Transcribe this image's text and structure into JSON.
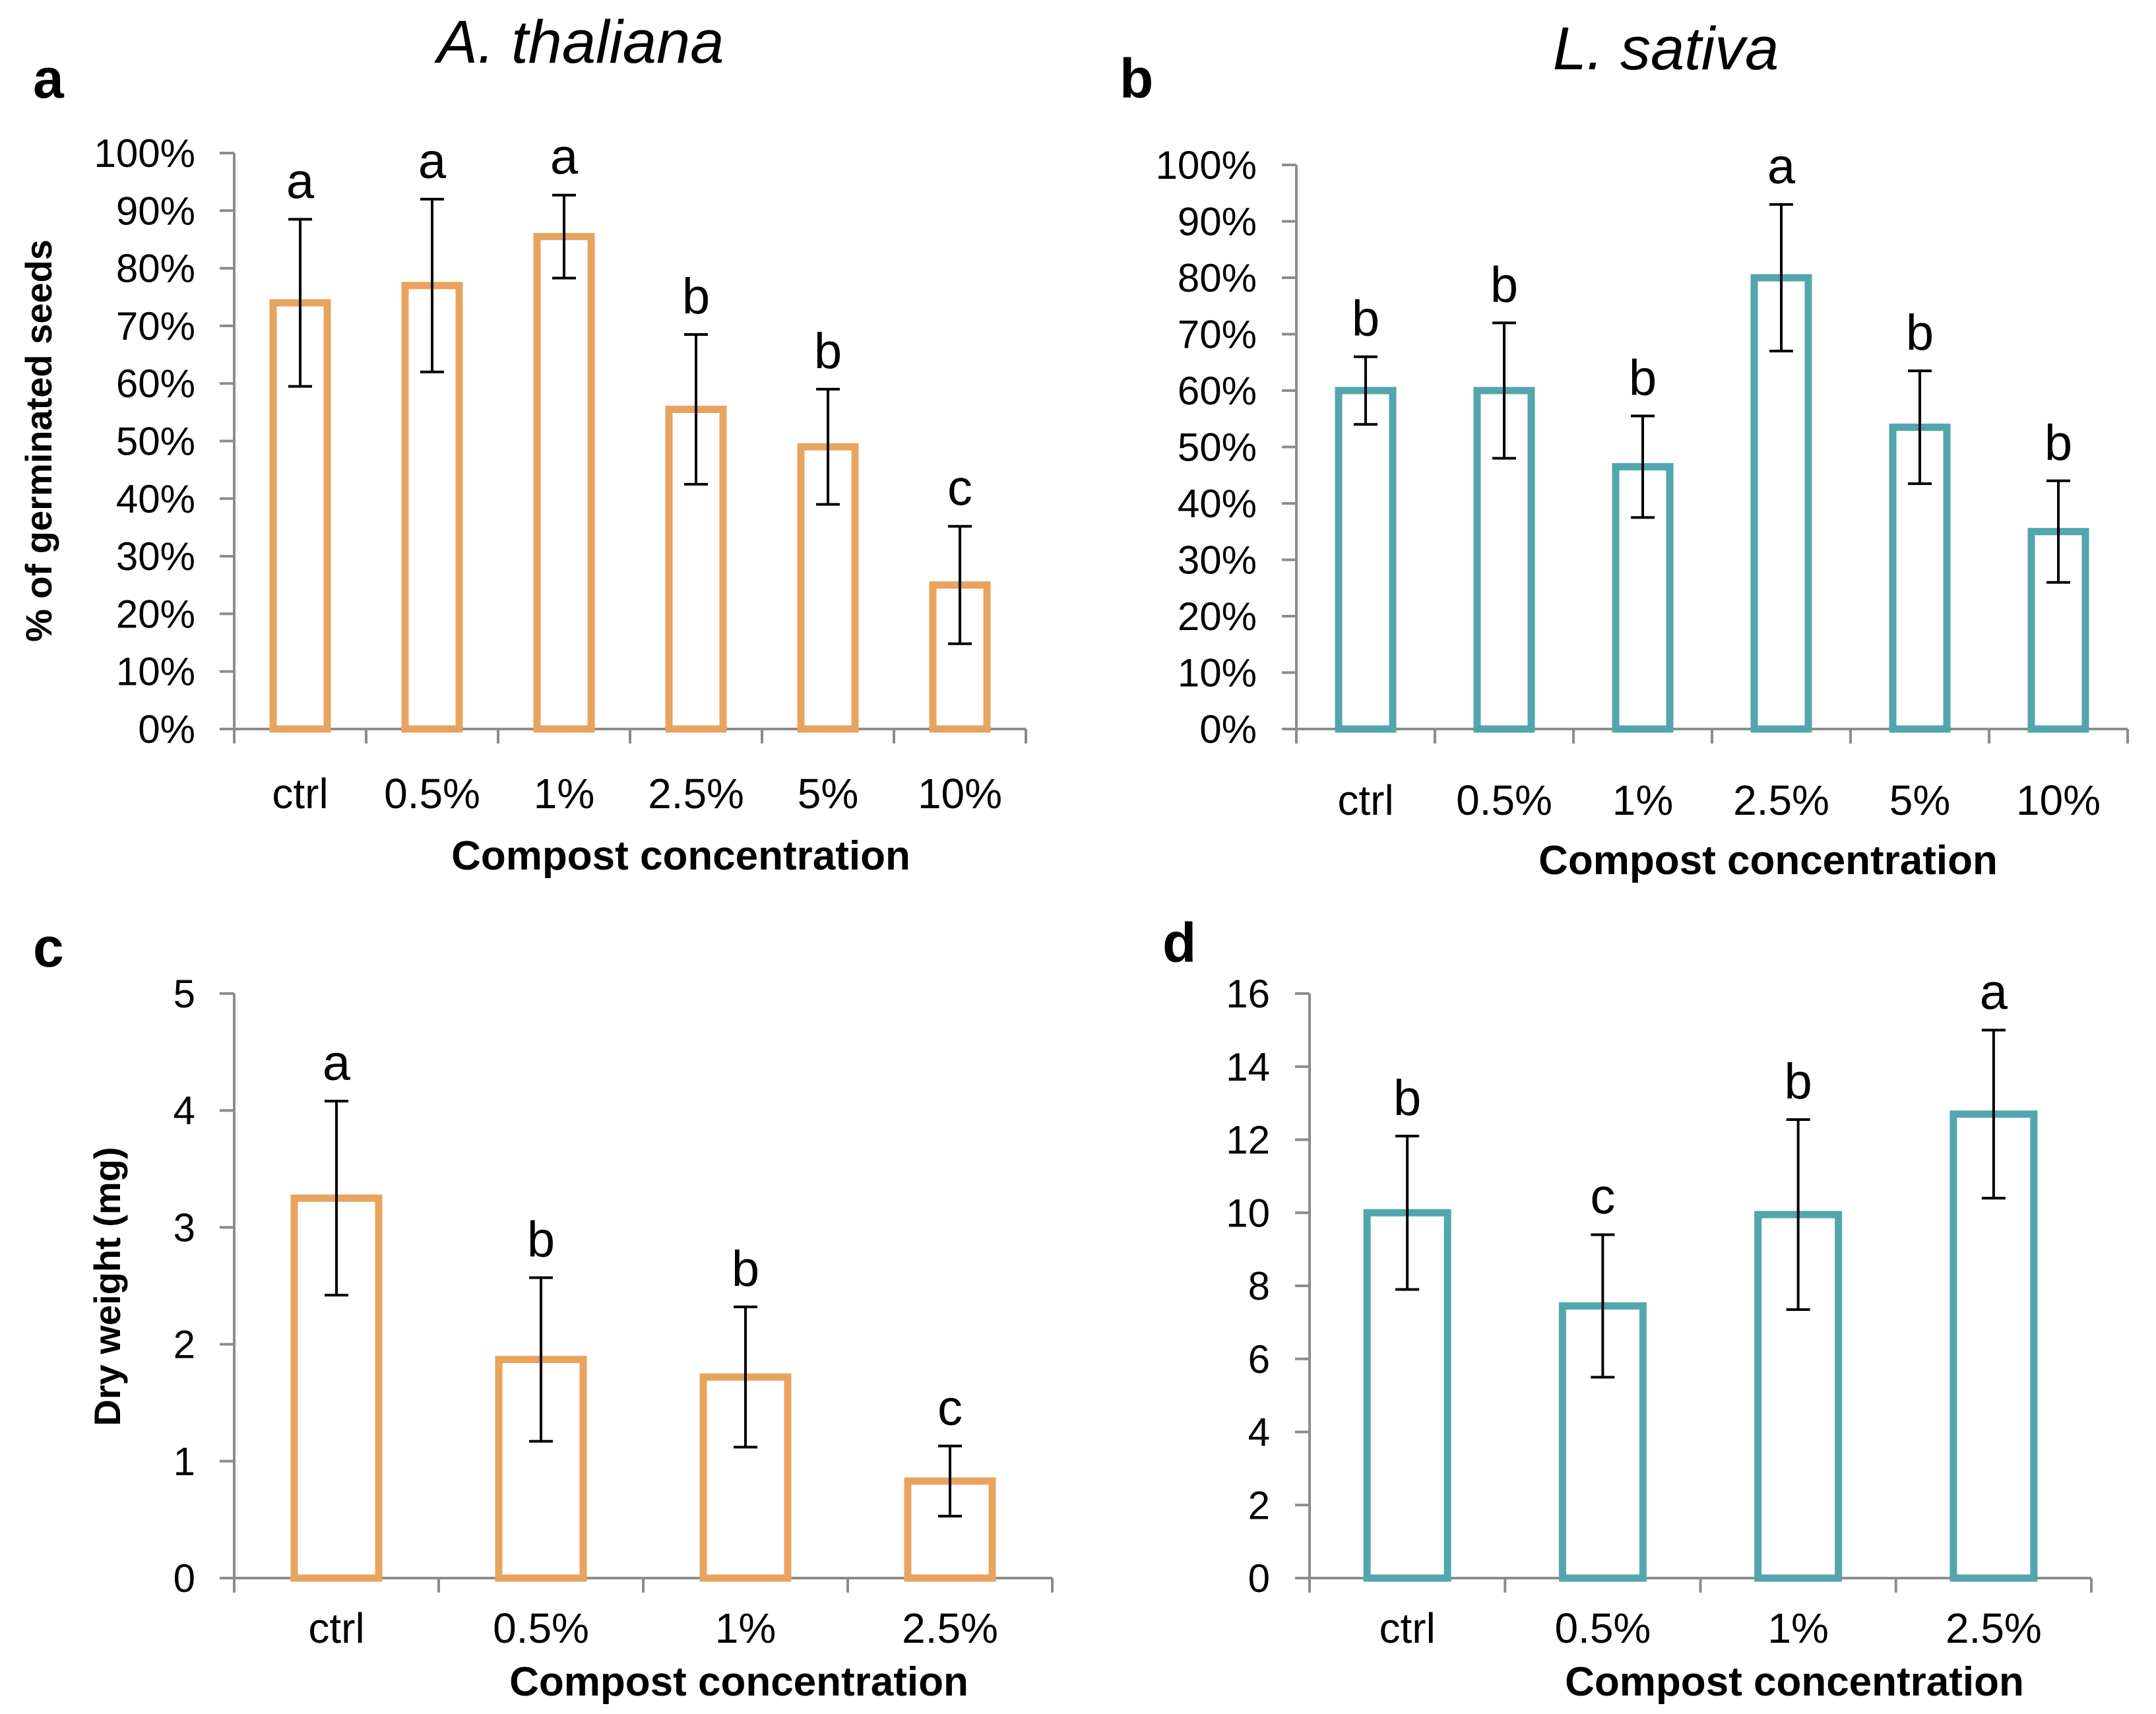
{
  "colors": {
    "orange": "#E8A35E",
    "teal": "#52A6AE",
    "axis": "#8C8C8C",
    "errorbar": "#000000"
  },
  "chart_data": [
    {
      "panel": "a",
      "type": "bar",
      "title": "A. thaliana",
      "xlabel": "Compost concentration",
      "ylabel": "% of germinated seeds",
      "categories": [
        "ctrl",
        "0.5%",
        "1%",
        "2.5%",
        "5%",
        "10%"
      ],
      "values": [
        74,
        77,
        85.5,
        55.5,
        49,
        25
      ],
      "errors": [
        14.5,
        15,
        7.2,
        13,
        10,
        10.2
      ],
      "letters": [
        "a",
        "a",
        "a",
        "b",
        "b",
        "c"
      ],
      "ylim": [
        0,
        100
      ],
      "yticks": [
        0,
        10,
        20,
        30,
        40,
        50,
        60,
        70,
        80,
        90,
        100
      ],
      "ytick_labels": [
        "0%",
        "10%",
        "20%",
        "30%",
        "40%",
        "50%",
        "60%",
        "70%",
        "80%",
        "90%",
        "100%"
      ],
      "color": "orange"
    },
    {
      "panel": "b",
      "type": "bar",
      "title": "L. sativa",
      "xlabel": "Compost concentration",
      "ylabel": "",
      "categories": [
        "ctrl",
        "0.5%",
        "1%",
        "2.5%",
        "5%",
        "10%"
      ],
      "values": [
        60,
        60,
        46.5,
        80,
        53.5,
        35
      ],
      "errors": [
        6,
        12,
        9,
        13,
        10,
        9
      ],
      "letters": [
        "b",
        "b",
        "b",
        "a",
        "b",
        "b"
      ],
      "ylim": [
        0,
        100
      ],
      "yticks": [
        0,
        10,
        20,
        30,
        40,
        50,
        60,
        70,
        80,
        90,
        100
      ],
      "ytick_labels": [
        "0%",
        "10%",
        "20%",
        "30%",
        "40%",
        "50%",
        "60%",
        "70%",
        "80%",
        "90%",
        "100%"
      ],
      "color": "teal"
    },
    {
      "panel": "c",
      "type": "bar",
      "title": "",
      "xlabel": "Compost concentration",
      "ylabel": "Dry weight (mg)",
      "categories": [
        "ctrl",
        "0.5%",
        "1%",
        "2.5%"
      ],
      "values": [
        3.25,
        1.87,
        1.72,
        0.83
      ],
      "errors": [
        0.83,
        0.7,
        0.6,
        0.3
      ],
      "letters": [
        "a",
        "b",
        "b",
        "c"
      ],
      "ylim": [
        0,
        5
      ],
      "yticks": [
        0,
        1,
        2,
        3,
        4,
        5
      ],
      "ytick_labels": [
        "0",
        "1",
        "2",
        "3",
        "4",
        "5"
      ],
      "color": "orange"
    },
    {
      "panel": "d",
      "type": "bar",
      "title": "",
      "xlabel": "Compost concentration",
      "ylabel": "",
      "categories": [
        "ctrl",
        "0.5%",
        "1%",
        "2.5%"
      ],
      "values": [
        10,
        7.45,
        9.95,
        12.7
      ],
      "errors": [
        2.1,
        1.95,
        2.6,
        2.3
      ],
      "letters": [
        "b",
        "c",
        "b",
        "a"
      ],
      "ylim": [
        0,
        16
      ],
      "yticks": [
        0,
        2,
        4,
        6,
        8,
        10,
        12,
        14,
        16
      ],
      "ytick_labels": [
        "0",
        "2",
        "4",
        "6",
        "8",
        "10",
        "12",
        "14",
        "16"
      ],
      "color": "teal"
    }
  ]
}
